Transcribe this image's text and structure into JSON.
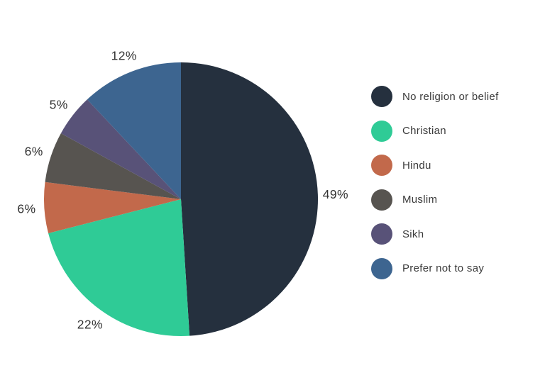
{
  "page": {
    "background": "#ffffff"
  },
  "chart_data": {
    "type": "pie",
    "direction": "clockwise",
    "start_angle_deg": 0,
    "legend_position": "right",
    "grid": false,
    "percent_label_color": "#333333",
    "legend_text_color": "#3b3b3b",
    "slices": [
      {
        "label": "No religion or belief",
        "value_pct": 49,
        "pct_label": "49%",
        "color": "#25303E"
      },
      {
        "label": "Christian",
        "value_pct": 22,
        "pct_label": "22%",
        "color": "#2FCB96"
      },
      {
        "label": "Hindu",
        "value_pct": 6,
        "pct_label": "6%",
        "color": "#C2694B"
      },
      {
        "label": "Muslim",
        "value_pct": 6,
        "pct_label": "6%",
        "color": "#575450"
      },
      {
        "label": "Sikh",
        "value_pct": 5,
        "pct_label": "5%",
        "color": "#585278"
      },
      {
        "label": "Prefer not to say",
        "value_pct": 12,
        "pct_label": "12%",
        "color": "#3D6590"
      }
    ]
  }
}
